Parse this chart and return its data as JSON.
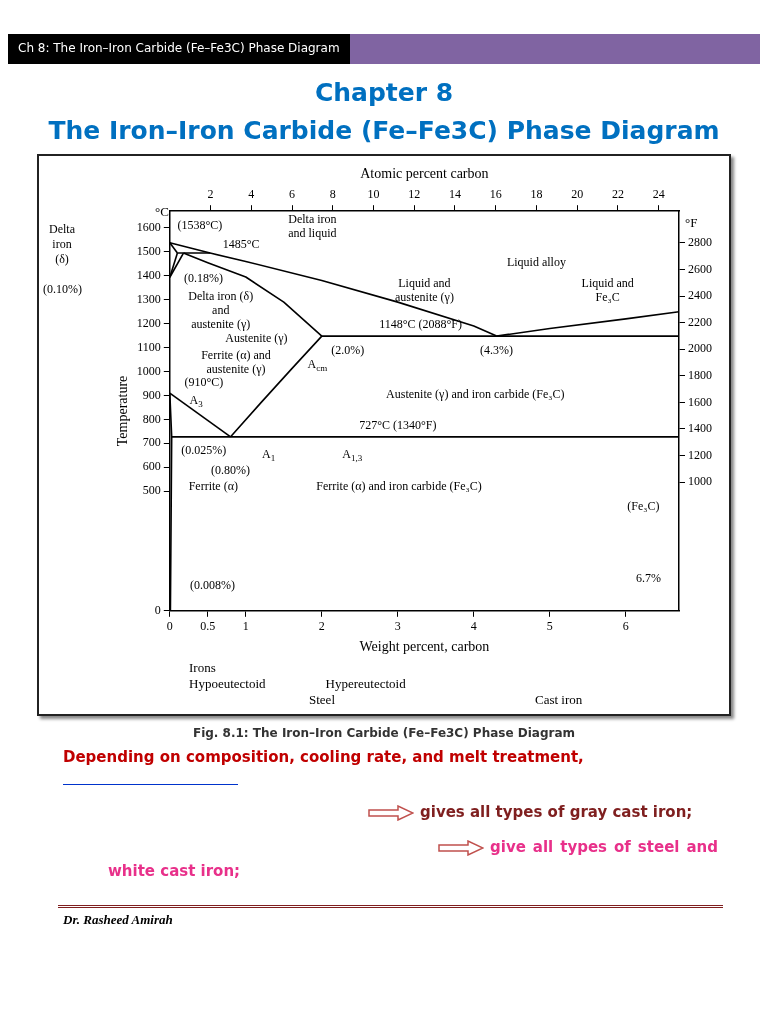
{
  "chart_data": {
    "type": "line",
    "title": "Chapter 8",
    "subtitle": "The Iron–Iron Carbide (Fe–Fe3C) Phase Diagram",
    "xlabel": "Weight percent, carbon",
    "x2label": "Atomic percent carbon",
    "ylabel": "Temperature",
    "y2label": "°F",
    "xlim": [
      0,
      6.7
    ],
    "xticks": [
      0,
      0.5,
      1,
      2,
      3,
      4,
      5,
      6
    ],
    "x2lim": [
      0,
      25
    ],
    "x2ticks": [
      2,
      4,
      6,
      8,
      10,
      12,
      14,
      16,
      18,
      20,
      22,
      24
    ],
    "ylim": [
      0,
      1670
    ],
    "yticks": [
      0,
      500,
      600,
      700,
      800,
      900,
      1000,
      1100,
      1200,
      1300,
      1400,
      1500,
      1600
    ],
    "y2lim": [
      32,
      3038
    ],
    "y2ticks": [
      1000,
      1200,
      1400,
      1600,
      1800,
      2000,
      2200,
      2400,
      2600,
      2800
    ],
    "series": [
      {
        "color": "#000000",
        "x": [
          0,
          0.53,
          1,
          2,
          3,
          4,
          4.3
        ],
        "values": [
          1538,
          1495,
          1460,
          1380,
          1290,
          1190,
          1148
        ]
      },
      {
        "color": "#000000",
        "x": [
          4.3,
          5,
          6,
          6.7
        ],
        "values": [
          1148,
          1180,
          1220,
          1250
        ]
      },
      {
        "color": "#000000",
        "x": [
          0.18,
          0.5,
          1,
          1.5,
          2.0
        ],
        "values": [
          1495,
          1455,
          1395,
          1290,
          1148
        ]
      },
      {
        "color": "#000000",
        "x": [
          0.1,
          0.53
        ],
        "values": [
          1495,
          1495
        ]
      },
      {
        "color": "#000000",
        "x": [
          0,
          0.1
        ],
        "values": [
          1538,
          1495
        ]
      },
      {
        "color": "#000000",
        "x": [
          0,
          0.1
        ],
        "values": [
          1394,
          1495
        ]
      },
      {
        "color": "#000000",
        "x": [
          0,
          0.18
        ],
        "values": [
          1394,
          1495
        ]
      },
      {
        "color": "#000000",
        "x": [
          2.0,
          6.7
        ],
        "values": [
          1148,
          1148
        ]
      },
      {
        "color": "#000000",
        "x": [
          0.8,
          1.2,
          1.6,
          2.0
        ],
        "values": [
          727,
          870,
          1010,
          1148
        ]
      },
      {
        "color": "#000000",
        "x": [
          0,
          0.8
        ],
        "values": [
          910,
          727
        ]
      },
      {
        "color": "#000000",
        "x": [
          0.025,
          6.7
        ],
        "values": [
          727,
          727
        ]
      },
      {
        "color": "#000000",
        "x": [
          0,
          0.025,
          0.008
        ],
        "values": [
          910,
          727,
          0
        ]
      }
    ],
    "annotations": [
      "Ch 8: The Iron–Iron Carbide (Fe–Fe3C) Phase Diagram",
      "°C",
      "Delta\niron\n(δ)",
      "(0.10%)",
      "Irons",
      "Hypoeutectoid",
      "Hypereutectoid",
      "Steel",
      "Cast iron",
      "Fig. 8.1: The Iron–Iron Carbide (Fe–Fe3C) Phase Diagram",
      "Depending on composition, cooling rate, and melt treatment,",
      "gives all types of gray cast iron;",
      "give all types of steel and white cast iron;",
      "Dr. Rasheed Amirah",
      {
        "text": "(1538°C)",
        "x": 0,
        "y": 1538
      },
      "Delta iron\nand liquid",
      "1485°C",
      {
        "text": "(0.18%)",
        "x": 0.18,
        "y": 1495
      },
      "Delta iron (δ)\nand\naustenite (γ)",
      "Liquid alloy",
      "Liquid and\naustenite (γ)",
      "Liquid and\nFe₃C",
      {
        "text": "1148°C (2088°F)",
        "x": 3.3,
        "y": 1148
      },
      "Austenite (γ)",
      {
        "text": "A$_{cm}$",
        "x": 1.6,
        "y": 1010
      },
      {
        "text": "(2.0%)",
        "x": 2.0,
        "y": 1148
      },
      {
        "text": "(4.3%)",
        "x": 4.3,
        "y": 1148
      },
      {
        "text": "(910°C)",
        "x": 0,
        "y": 910
      },
      "Ferrite (α) and\naustenite (γ)",
      {
        "text": "A$_{3}$",
        "x": 0.4,
        "y": 818.5
      },
      "Austenite (γ) and iron carbide (Fe₃C)",
      {
        "text": "727°C (1340°F)",
        "x": 3,
        "y": 727
      },
      {
        "text": "(0.025%)",
        "x": 0.025,
        "y": 727
      },
      {
        "text": "A$_{1}$",
        "x": 1.3,
        "y": 727
      },
      {
        "text": "(0.80%)",
        "x": 0.8,
        "y": 727
      },
      {
        "text": "A$_{1,3}$",
        "x": 2.4,
        "y": 727
      },
      {
        "text": "Ferrite (α)",
        "x": 0.02,
        "y": 520
      },
      "Ferrite (α) and iron carbide (Fe₃C)",
      "(Fe₃C)",
      {
        "text": "(0.008%)",
        "x": 0.008,
        "y": 0
      },
      "6.7%"
    ]
  }
}
